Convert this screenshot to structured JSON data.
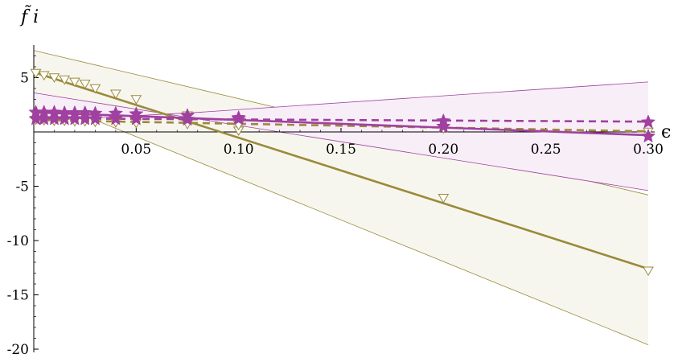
{
  "chart_data": {
    "type": "line",
    "xlabel": "ϵ",
    "ylabel": "f̃ i",
    "xlim": [
      0,
      0.3
    ],
    "ylim": [
      -20,
      8
    ],
    "x_ticks": [
      0.05,
      0.1,
      0.15,
      0.2,
      0.25,
      0.3
    ],
    "x_tick_labels": [
      "0.05",
      "0.10",
      "0.15",
      "0.20",
      "0.25",
      "0.30"
    ],
    "y_ticks": [
      5,
      -5,
      -10,
      -15,
      -20
    ],
    "y_tick_labels": [
      "5",
      "-5",
      "-10",
      "-15",
      "-20"
    ],
    "grid": false,
    "legend": "none",
    "colors": {
      "olive": "#9a8a3a",
      "purple": "#a040a0",
      "olive_band": "#f7f6ee",
      "purple_band": "#f7eef7"
    },
    "series": [
      {
        "color": "olive",
        "marker": "triangle-down-open",
        "style": "solid",
        "points": [
          [
            0.001,
            5.4
          ],
          [
            0.005,
            5.2
          ],
          [
            0.01,
            5.0
          ],
          [
            0.015,
            4.8
          ],
          [
            0.02,
            4.6
          ],
          [
            0.025,
            4.4
          ],
          [
            0.03,
            4.0
          ],
          [
            0.04,
            3.5
          ],
          [
            0.05,
            3.0
          ],
          [
            0.075,
            1.5
          ],
          [
            0.1,
            0.1
          ],
          [
            0.2,
            -6.1
          ],
          [
            0.3,
            -12.8
          ]
        ],
        "fit": [
          [
            0,
            5.5
          ],
          [
            0.3,
            -12.6
          ]
        ],
        "band_upper": [
          [
            0,
            7.5
          ],
          [
            0.3,
            -5.8
          ]
        ],
        "band_lower": [
          [
            0,
            3.4
          ],
          [
            0.3,
            -19.6
          ]
        ]
      },
      {
        "color": "olive",
        "marker": "triangle-down-open",
        "style": "dashed",
        "points": [
          [
            0.001,
            1.1
          ],
          [
            0.005,
            1.05
          ],
          [
            0.01,
            1.0
          ],
          [
            0.015,
            1.0
          ],
          [
            0.02,
            0.95
          ],
          [
            0.025,
            0.95
          ],
          [
            0.03,
            0.9
          ],
          [
            0.04,
            0.85
          ],
          [
            0.05,
            0.8
          ],
          [
            0.075,
            0.7
          ],
          [
            0.1,
            0.6
          ],
          [
            0.2,
            0.3
          ],
          [
            0.3,
            0.0
          ]
        ],
        "fit": [
          [
            0,
            1.1
          ],
          [
            0.3,
            0.05
          ]
        ]
      },
      {
        "color": "purple",
        "marker": "star",
        "style": "solid",
        "points": [
          [
            0.001,
            1.8
          ],
          [
            0.005,
            1.8
          ],
          [
            0.01,
            1.8
          ],
          [
            0.015,
            1.75
          ],
          [
            0.02,
            1.75
          ],
          [
            0.025,
            1.75
          ],
          [
            0.03,
            1.7
          ],
          [
            0.04,
            1.7
          ],
          [
            0.05,
            1.65
          ],
          [
            0.075,
            1.5
          ],
          [
            0.1,
            1.3
          ],
          [
            0.2,
            0.5
          ],
          [
            0.3,
            -0.4
          ]
        ],
        "fit": [
          [
            0,
            1.8
          ],
          [
            0.3,
            -0.3
          ]
        ],
        "band_upper": [
          [
            0,
            1.0
          ],
          [
            0.08,
            1.8
          ],
          [
            0.3,
            4.6
          ]
        ],
        "band_lower": [
          [
            0,
            3.6
          ],
          [
            0.3,
            -5.4
          ]
        ]
      },
      {
        "color": "purple",
        "marker": "star",
        "style": "dashed",
        "points": [
          [
            0.001,
            1.2
          ],
          [
            0.005,
            1.2
          ],
          [
            0.01,
            1.2
          ],
          [
            0.015,
            1.2
          ],
          [
            0.02,
            1.2
          ],
          [
            0.025,
            1.2
          ],
          [
            0.03,
            1.2
          ],
          [
            0.04,
            1.2
          ],
          [
            0.05,
            1.2
          ],
          [
            0.075,
            1.15
          ],
          [
            0.1,
            1.2
          ],
          [
            0.2,
            1.0
          ],
          [
            0.3,
            0.9
          ]
        ],
        "fit": [
          [
            0,
            1.25
          ],
          [
            0.3,
            0.95
          ]
        ]
      }
    ]
  }
}
